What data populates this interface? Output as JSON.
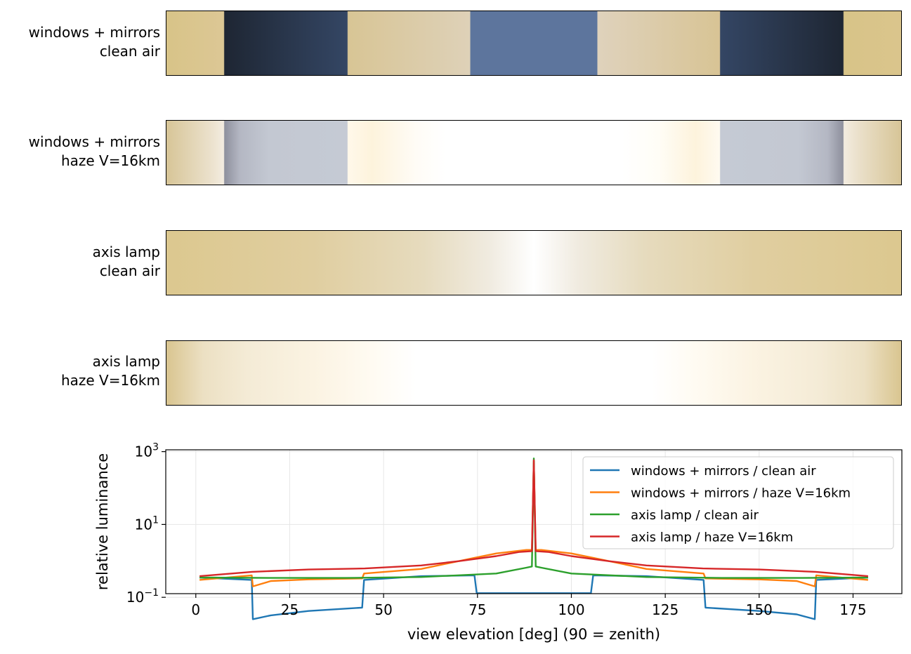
{
  "strips": [
    {
      "label_line1": "windows + mirrors",
      "label_line2": "clean air"
    },
    {
      "label_line1": "windows + mirrors",
      "label_line2": "haze V=16km"
    },
    {
      "label_line1": "axis lamp",
      "label_line2": "clean air"
    },
    {
      "label_line1": "axis lamp",
      "label_line2": "haze V=16km"
    }
  ],
  "chart_data": {
    "type": "line",
    "xlabel": "view elevation [deg]  (90 = zenith)",
    "ylabel": "relative luminance",
    "xlim": [
      -8,
      188
    ],
    "ylim_log10": [
      -0.9,
      3.05
    ],
    "y_scale": "log",
    "x_ticks": [
      0,
      25,
      50,
      75,
      100,
      125,
      150,
      175
    ],
    "x_tick_labels": [
      "0",
      "25",
      "50",
      "75",
      "100",
      "125",
      "150",
      "175"
    ],
    "y_ticks": [
      {
        "value": 1000,
        "base": "10",
        "exp": "3"
      },
      {
        "value": 10,
        "base": "10",
        "exp": "1"
      },
      {
        "value": 0.1,
        "base": "10",
        "exp": "−1"
      }
    ],
    "grid": true,
    "legend_position": "upper-right",
    "series": [
      {
        "name": "windows + mirrors / clean air",
        "color": "#1f77b4",
        "points": [
          [
            1,
            0.35
          ],
          [
            14.9,
            0.3
          ],
          [
            15.2,
            0.025
          ],
          [
            20,
            0.032
          ],
          [
            30,
            0.042
          ],
          [
            44.3,
            0.052
          ],
          [
            44.8,
            0.3
          ],
          [
            60,
            0.38
          ],
          [
            74.2,
            0.4
          ],
          [
            74.8,
            0.13
          ],
          [
            90,
            0.13
          ],
          [
            105.2,
            0.13
          ],
          [
            105.8,
            0.4
          ],
          [
            120,
            0.38
          ],
          [
            135.2,
            0.3
          ],
          [
            135.7,
            0.052
          ],
          [
            150,
            0.042
          ],
          [
            160,
            0.034
          ],
          [
            164.8,
            0.025
          ],
          [
            165.2,
            0.3
          ],
          [
            179,
            0.35
          ]
        ]
      },
      {
        "name": "windows + mirrors / haze V=16km",
        "color": "#ff7f0e",
        "points": [
          [
            1,
            0.3
          ],
          [
            14.9,
            0.4
          ],
          [
            15.2,
            0.2
          ],
          [
            20,
            0.28
          ],
          [
            30,
            0.31
          ],
          [
            44.3,
            0.33
          ],
          [
            44.8,
            0.45
          ],
          [
            60,
            0.6
          ],
          [
            74,
            1.2
          ],
          [
            80,
            1.6
          ],
          [
            88,
            2.0
          ],
          [
            89.5,
            2.0
          ],
          [
            90,
            550
          ],
          [
            90.5,
            2.0
          ],
          [
            92,
            2.0
          ],
          [
            100,
            1.6
          ],
          [
            106,
            1.2
          ],
          [
            120,
            0.6
          ],
          [
            135.2,
            0.45
          ],
          [
            135.7,
            0.33
          ],
          [
            150,
            0.31
          ],
          [
            160,
            0.28
          ],
          [
            164.8,
            0.2
          ],
          [
            165.2,
            0.4
          ],
          [
            179,
            0.3
          ]
        ]
      },
      {
        "name": "axis lamp / clean air",
        "color": "#2ca02c",
        "points": [
          [
            1,
            0.35
          ],
          [
            20,
            0.34
          ],
          [
            40,
            0.34
          ],
          [
            60,
            0.36
          ],
          [
            80,
            0.45
          ],
          [
            88,
            0.65
          ],
          [
            89.5,
            0.7
          ],
          [
            90,
            650
          ],
          [
            90.5,
            0.7
          ],
          [
            92,
            0.65
          ],
          [
            100,
            0.45
          ],
          [
            120,
            0.36
          ],
          [
            140,
            0.34
          ],
          [
            160,
            0.34
          ],
          [
            179,
            0.35
          ]
        ]
      },
      {
        "name": "axis lamp / haze V=16km",
        "color": "#d62728",
        "points": [
          [
            1,
            0.38
          ],
          [
            15,
            0.5
          ],
          [
            30,
            0.58
          ],
          [
            45,
            0.62
          ],
          [
            60,
            0.75
          ],
          [
            70,
            0.98
          ],
          [
            80,
            1.35
          ],
          [
            86,
            1.75
          ],
          [
            89.5,
            1.85
          ],
          [
            90,
            580
          ],
          [
            90.5,
            1.85
          ],
          [
            94,
            1.75
          ],
          [
            100,
            1.35
          ],
          [
            110,
            0.98
          ],
          [
            120,
            0.75
          ],
          [
            135,
            0.62
          ],
          [
            150,
            0.58
          ],
          [
            165,
            0.5
          ],
          [
            179,
            0.38
          ]
        ]
      }
    ]
  }
}
